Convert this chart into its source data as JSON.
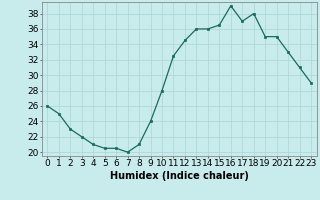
{
  "x": [
    0,
    1,
    2,
    3,
    4,
    5,
    6,
    7,
    8,
    9,
    10,
    11,
    12,
    13,
    14,
    15,
    16,
    17,
    18,
    19,
    20,
    21,
    22,
    23
  ],
  "y": [
    26,
    25,
    23,
    22,
    21,
    20.5,
    20.5,
    20,
    21,
    24,
    28,
    32.5,
    34.5,
    36,
    36,
    36.5,
    39,
    37,
    38,
    35,
    35,
    33,
    31,
    29
  ],
  "line_color": "#1a6b5a",
  "marker_color": "#1a6b5a",
  "bg_color": "#c8ecec",
  "grid_color": "#b0d8d8",
  "xlabel": "Humidex (Indice chaleur)",
  "ylim": [
    19.5,
    39.5
  ],
  "xlim": [
    -0.5,
    23.5
  ],
  "yticks": [
    20,
    22,
    24,
    26,
    28,
    30,
    32,
    34,
    36,
    38
  ],
  "xticks": [
    0,
    1,
    2,
    3,
    4,
    5,
    6,
    7,
    8,
    9,
    10,
    11,
    12,
    13,
    14,
    15,
    16,
    17,
    18,
    19,
    20,
    21,
    22,
    23
  ],
  "xlabel_fontsize": 7,
  "tick_fontsize": 6.5
}
